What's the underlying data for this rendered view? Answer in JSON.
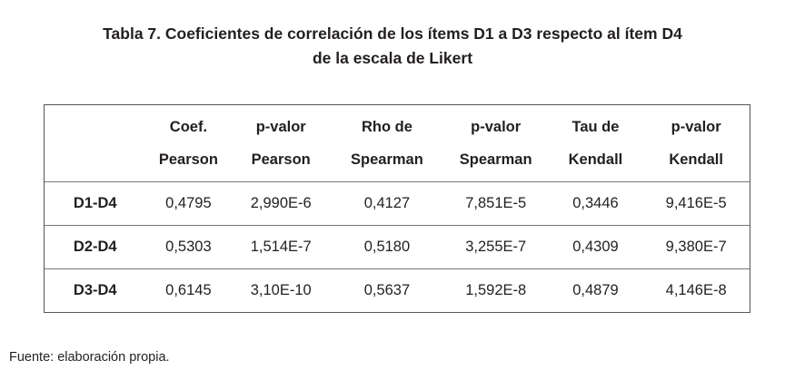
{
  "title_lines": [
    "Tabla 7. Coeficientes de correlación de los ítems D1 a D3 respecto al ítem D4",
    "de la escala de Likert"
  ],
  "table": {
    "headers": [
      [
        "",
        ""
      ],
      [
        "Coef.",
        "Pearson"
      ],
      [
        "p-valor",
        "Pearson"
      ],
      [
        "Rho de",
        "Spearman"
      ],
      [
        "p-valor",
        "Spearman"
      ],
      [
        "Tau de",
        "Kendall"
      ],
      [
        "p-valor",
        "Kendall"
      ]
    ],
    "rows": [
      [
        "D1-D4",
        "0,4795",
        "2,990E-6",
        "0,4127",
        "7,851E-5",
        "0,3446",
        "9,416E-5"
      ],
      [
        "D2-D4",
        "0,5303",
        "1,514E-7",
        "0,5180",
        "3,255E-7",
        "0,4309",
        "9,380E-7"
      ],
      [
        "D3-D4",
        "0,6145",
        "3,10E-10",
        "0,5637",
        "1,592E-8",
        "0,4879",
        "4,146E-8"
      ]
    ]
  },
  "source": "Fuente: elaboración propia."
}
